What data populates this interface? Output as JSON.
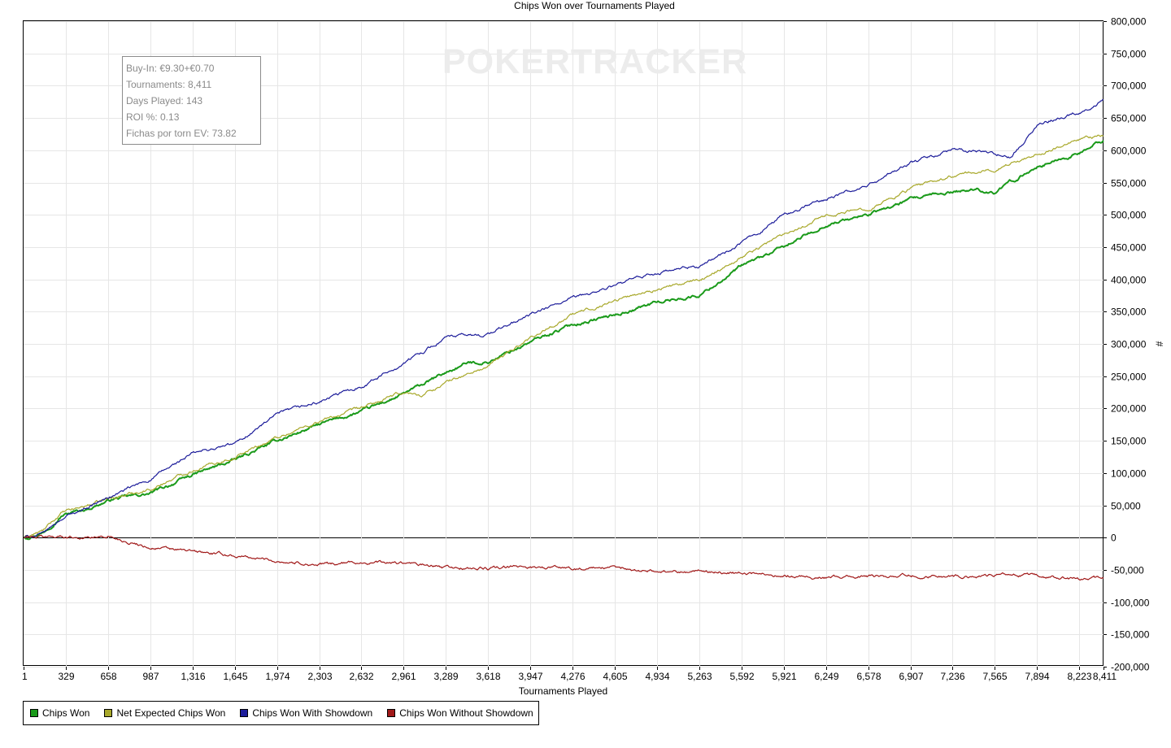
{
  "chart_data": {
    "type": "line",
    "title": "Chips Won over Tournaments Played",
    "xlabel": "Tournaments Played",
    "ylabel": "#",
    "xlim": [
      1,
      8411
    ],
    "ylim": [
      -200000,
      800000
    ],
    "x_ticks": [
      "1",
      "329",
      "658",
      "987",
      "1,316",
      "1,645",
      "1,974",
      "2,303",
      "2,632",
      "2,961",
      "3,289",
      "3,618",
      "3,947",
      "4,276",
      "4,605",
      "4,934",
      "5,263",
      "5,592",
      "5,921",
      "6,249",
      "6,578",
      "6,907",
      "7,236",
      "7,565",
      "7,894",
      "8,223",
      "8,411"
    ],
    "y_ticks": [
      "800,000",
      "750,000",
      "700,000",
      "650,000",
      "600,000",
      "550,000",
      "500,000",
      "450,000",
      "400,000",
      "350,000",
      "300,000",
      "250,000",
      "200,000",
      "150,000",
      "100,000",
      "50,000",
      "0",
      "-50,000",
      "-100,000",
      "-150,000",
      "-200,000"
    ],
    "grid": true,
    "legend_position": "bottom-left",
    "series": [
      {
        "name": "Chips Won",
        "color": "#1a9a1a",
        "x": [
          1,
          150,
          300,
          500,
          700,
          987,
          1316,
          1645,
          1974,
          2303,
          2632,
          2961,
          3289,
          3450,
          3618,
          3947,
          4276,
          4605,
          4934,
          5263,
          5592,
          5921,
          6249,
          6578,
          6907,
          7236,
          7400,
          7565,
          7894,
          8223,
          8411
        ],
        "y": [
          0,
          8000,
          35000,
          45000,
          60000,
          68000,
          97000,
          120000,
          150000,
          175000,
          195000,
          222000,
          255000,
          270000,
          272000,
          303000,
          330000,
          345000,
          365000,
          375000,
          420000,
          450000,
          485000,
          500000,
          523000,
          535000,
          540000,
          535000,
          575000,
          595000,
          615000
        ]
      },
      {
        "name": "Net Expected Chips Won",
        "color": "#a8a82a",
        "x": [
          1,
          150,
          300,
          500,
          700,
          987,
          1316,
          1645,
          1974,
          2303,
          2632,
          2961,
          3100,
          3289,
          3618,
          3947,
          4276,
          4605,
          4934,
          5263,
          5592,
          5921,
          6249,
          6578,
          6907,
          7236,
          7565,
          7894,
          8223,
          8411
        ],
        "y": [
          0,
          10000,
          38000,
          50000,
          62000,
          75000,
          105000,
          125000,
          155000,
          180000,
          200000,
          225000,
          220000,
          240000,
          265000,
          310000,
          345000,
          368000,
          385000,
          398000,
          435000,
          470000,
          500000,
          510000,
          540000,
          560000,
          570000,
          595000,
          615000,
          622000
        ]
      },
      {
        "name": "Chips Won With Showdown",
        "color": "#1c1c9a",
        "x": [
          1,
          150,
          300,
          500,
          700,
          987,
          1316,
          1645,
          1974,
          2303,
          2632,
          2961,
          3289,
          3618,
          3947,
          4276,
          4605,
          4934,
          5263,
          5592,
          5921,
          6249,
          6578,
          6907,
          7236,
          7565,
          7700,
          7894,
          8223,
          8411
        ],
        "y": [
          0,
          5000,
          30000,
          48000,
          65000,
          90000,
          130000,
          145000,
          190000,
          210000,
          235000,
          270000,
          310000,
          315000,
          345000,
          370000,
          390000,
          410000,
          420000,
          455000,
          500000,
          525000,
          545000,
          580000,
          600000,
          595000,
          590000,
          640000,
          660000,
          678000
        ]
      },
      {
        "name": "Chips Won Without Showdown",
        "color": "#a01818",
        "x": [
          1,
          300,
          500,
          658,
          987,
          1316,
          1645,
          1974,
          2303,
          2632,
          2961,
          3289,
          3618,
          3947,
          4276,
          4605,
          4934,
          5263,
          5592,
          5921,
          6249,
          6578,
          6907,
          7236,
          7565,
          7894,
          8223,
          8411
        ],
        "y": [
          0,
          2000,
          0,
          2000,
          -15000,
          -22000,
          -28000,
          -36000,
          -42000,
          -38000,
          -40000,
          -47000,
          -48000,
          -45000,
          -47000,
          -48000,
          -52000,
          -52000,
          -55000,
          -58000,
          -62000,
          -60000,
          -58000,
          -60000,
          -58000,
          -60000,
          -65000,
          -63000
        ]
      }
    ],
    "info_box": [
      "Buy-In: €9.30+€0.70",
      "Tournaments: 8,411",
      "Days Played: 143",
      "ROI %: 0.13",
      "Fichas por torn EV: 73.82"
    ],
    "watermark": "POKERTRACKER"
  }
}
